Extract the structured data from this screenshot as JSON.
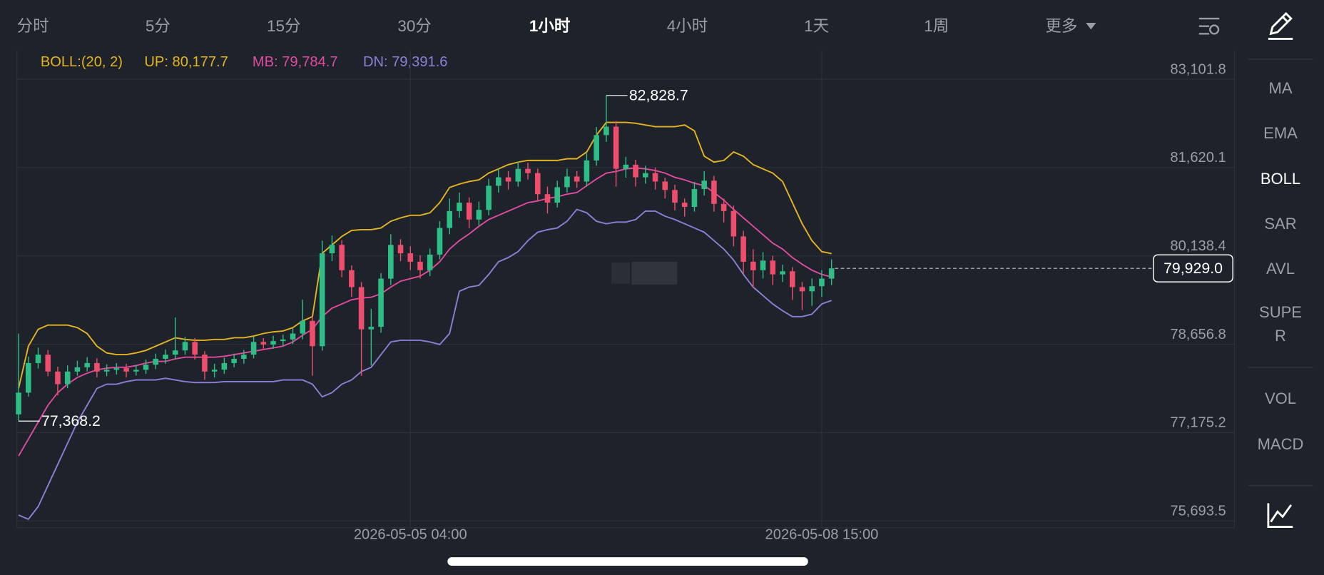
{
  "tabs": [
    "分时",
    "5分",
    "15分",
    "30分",
    "1小时",
    "4小时",
    "1天",
    "1周",
    "更多"
  ],
  "sidebar": {
    "indicators": [
      "MA",
      "EMA",
      "BOLL",
      "SAR",
      "AVL",
      "SUPER"
    ],
    "sub_indicators": [
      "VOL",
      "MACD"
    ]
  },
  "chart_data": {
    "type": "candlestick",
    "indicator": "BOLL:(20, 2)",
    "categories": [
      null,
      null,
      null,
      null,
      null,
      null,
      null,
      null,
      null,
      null,
      null,
      null,
      null,
      null,
      null,
      null,
      null,
      null,
      null,
      null,
      null,
      null,
      null,
      null,
      null,
      null,
      null,
      null,
      null,
      null,
      null,
      null,
      null,
      null,
      null,
      null,
      null,
      null,
      null,
      null,
      "2026-05-05 04:00",
      null,
      null,
      null,
      null,
      null,
      null,
      null,
      null,
      null,
      null,
      null,
      null,
      null,
      null,
      null,
      null,
      null,
      null,
      null,
      null,
      null,
      null,
      null,
      null,
      null,
      null,
      null,
      null,
      null,
      null,
      null,
      null,
      null,
      null,
      null,
      null,
      null,
      null,
      null,
      null,
      null,
      "2026-05-08 15:00",
      null
    ],
    "open": [
      77480,
      77845,
      78341,
      78482,
      78199,
      77987,
      78199,
      78270,
      78341,
      78199,
      78228,
      78256,
      78199,
      78228,
      78313,
      78412,
      78482,
      78553,
      78695,
      78482,
      78199,
      78230,
      78341,
      78412,
      78482,
      78695,
      78652,
      78710,
      78737,
      78836,
      79049,
      78624,
      80182,
      80323,
      79898,
      79615,
      78907,
      78950,
      79757,
      80323,
      80182,
      80040,
      79898,
      80160,
      80606,
      80890,
      81031,
      80748,
      80910,
      81314,
      81456,
      81385,
      81598,
      81527,
      81173,
      81031,
      81290,
      81470,
      81385,
      81739,
      82164,
      82306,
      81598,
      81668,
      81456,
      81527,
      81385,
      81244,
      81031,
      80960,
      81260,
      81400,
      81010,
      80890,
      80465,
      80040,
      79898,
      80060,
      79828,
      79880,
      79615,
      79544,
      79630,
      79757
    ],
    "high": [
      78836,
      78450,
      78600,
      78560,
      78280,
      78300,
      78380,
      78440,
      78420,
      78320,
      78340,
      78330,
      78310,
      78400,
      78500,
      78570,
      79106,
      78780,
      78760,
      78540,
      78330,
      78430,
      78500,
      78560,
      78790,
      78760,
      78800,
      78820,
      78930,
      79403,
      79120,
      80394,
      80480,
      80400,
      79980,
      79700,
      79250,
      79850,
      80500,
      80420,
      80300,
      80150,
      80260,
      80720,
      81100,
      81200,
      81120,
      81050,
      81430,
      81600,
      81560,
      81720,
      81700,
      81600,
      81300,
      81400,
      81600,
      81560,
      81860,
      82300,
      82828.7,
      82400,
      81800,
      81750,
      81650,
      81620,
      81450,
      81330,
      81100,
      81380,
      81560,
      81480,
      81100,
      80980,
      80560,
      80250,
      80200,
      80140,
      79990,
      79950,
      79700,
      79760,
      79900,
      80080
    ],
    "low": [
      77368.2,
      77780,
      78250,
      78120,
      77800,
      77920,
      78130,
      78200,
      78100,
      78120,
      78150,
      78100,
      78130,
      78160,
      78240,
      78330,
      78400,
      78480,
      78400,
      78060,
      78100,
      78160,
      78270,
      78330,
      78420,
      78570,
      78580,
      78630,
      78660,
      78740,
      78128,
      78550,
      80050,
      79780,
      79450,
      78128,
      78300,
      78850,
      79650,
      80050,
      79900,
      79760,
      79800,
      80080,
      80500,
      80780,
      80600,
      80650,
      80820,
      81200,
      81250,
      81300,
      81420,
      81050,
      80850,
      80950,
      81200,
      81280,
      81300,
      81650,
      82050,
      81300,
      81450,
      81300,
      81350,
      81250,
      81100,
      80900,
      80800,
      80880,
      81150,
      80880,
      80700,
      80300,
      79830,
      79600,
      79760,
      79650,
      79700,
      79400,
      79230,
      79300,
      79450,
      79650
    ],
    "close": [
      77845,
      78341,
      78482,
      78199,
      77987,
      78199,
      78270,
      78341,
      78199,
      78228,
      78256,
      78199,
      78228,
      78313,
      78412,
      78482,
      78553,
      78695,
      78482,
      78199,
      78230,
      78341,
      78412,
      78482,
      78695,
      78652,
      78710,
      78737,
      78836,
      79049,
      78624,
      80182,
      80323,
      79898,
      79615,
      78907,
      78950,
      79757,
      80323,
      80182,
      80040,
      79898,
      80160,
      80606,
      80890,
      81031,
      80748,
      80910,
      81314,
      81456,
      81385,
      81598,
      81527,
      81173,
      81031,
      81290,
      81470,
      81385,
      81739,
      82164,
      82306,
      81598,
      81668,
      81456,
      81527,
      81385,
      81244,
      81031,
      80960,
      81260,
      81400,
      81010,
      80890,
      80465,
      80040,
      79898,
      80060,
      79828,
      79880,
      79615,
      79544,
      79630,
      79757,
      79929
    ],
    "up_color": "#2ebd85",
    "down_color": "#ee4e6c",
    "series": [
      {
        "name": "UP: 80,177.7",
        "color": "#e6b422",
        "values": [
          77916,
          78624,
          78907,
          78978,
          78978,
          78978,
          78936,
          78836,
          78624,
          78511,
          78482,
          78482,
          78511,
          78553,
          78624,
          78695,
          78766,
          78737,
          78723,
          78723,
          78737,
          78737,
          78766,
          78766,
          78794,
          78836,
          78865,
          78879,
          78936,
          79049,
          79120,
          80182,
          80323,
          80465,
          80564,
          80578,
          80578,
          80606,
          80720,
          80776,
          80819,
          80819,
          80861,
          81031,
          81286,
          81343,
          81385,
          81414,
          81527,
          81598,
          81668,
          81711,
          81739,
          81739,
          81739,
          81739,
          81768,
          81768,
          81881,
          82164,
          82376,
          82376,
          82376,
          82362,
          82334,
          82306,
          82306,
          82306,
          82334,
          82235,
          81810,
          81711,
          81739,
          81881,
          81810,
          81668,
          81598,
          81527,
          81385,
          81031,
          80677,
          80394,
          80210,
          80177.7
        ]
      },
      {
        "name": "MB: 79,784.7",
        "color": "#e04aa0",
        "values": [
          76783,
          77066,
          77350,
          77633,
          77845,
          77987,
          78100,
          78171,
          78228,
          78256,
          78270,
          78270,
          78298,
          78341,
          78369,
          78369,
          78412,
          78440,
          78440,
          78440,
          78440,
          78454,
          78482,
          78511,
          78539,
          78567,
          78596,
          78624,
          78695,
          78808,
          78907,
          79120,
          79261,
          79332,
          79403,
          79431,
          79445,
          79502,
          79615,
          79714,
          79757,
          79799,
          79898,
          80040,
          80252,
          80394,
          80507,
          80635,
          80748,
          80819,
          80890,
          80960,
          81031,
          81060,
          81102,
          81130,
          81173,
          81201,
          81314,
          81428,
          81527,
          81555,
          81598,
          81612,
          81598,
          81569,
          81527,
          81456,
          81414,
          81357,
          81314,
          81201,
          81074,
          80918,
          80776,
          80635,
          80493,
          80352,
          80252,
          80111,
          79998,
          79898,
          79828,
          79784.7
        ]
      },
      {
        "name": "DN: 79,391.6",
        "color": "#8d7fd8",
        "values": [
          75792,
          75721,
          75934,
          76288,
          76642,
          76996,
          77350,
          77633,
          77916,
          77987,
          77987,
          78029,
          78058,
          78058,
          78058,
          78086,
          78058,
          78029,
          78015,
          78015,
          78015,
          78029,
          78029,
          78029,
          78029,
          78029,
          78029,
          78058,
          78058,
          78058,
          77987,
          77774,
          77845,
          77987,
          78058,
          78199,
          78270,
          78482,
          78695,
          78723,
          78723,
          78723,
          78695,
          78652,
          78836,
          79544,
          79615,
          79644,
          79828,
          80040,
          80111,
          80210,
          80394,
          80536,
          80578,
          80606,
          80720,
          80918,
          80861,
          80720,
          80677,
          80706,
          80706,
          80748,
          80890,
          80890,
          80805,
          80748,
          80677,
          80606,
          80536,
          80394,
          80252,
          80068,
          79828,
          79615,
          79474,
          79332,
          79219,
          79120,
          79120,
          79162,
          79332,
          79391.6
        ]
      }
    ],
    "ylim": [
      75580,
      83580
    ],
    "yticks": [
      {
        "value": 75693.5,
        "label": "75,693.5"
      },
      {
        "value": 77175.2,
        "label": "77,175.2"
      },
      {
        "value": 78656.8,
        "label": "78,656.8"
      },
      {
        "value": 80138.4,
        "label": "80,138.4"
      },
      {
        "value": 81620.1,
        "label": "81,620.1"
      },
      {
        "value": 83101.8,
        "label": "83,101.8"
      }
    ],
    "grid": true,
    "annotations": [
      {
        "value": 82828.7,
        "label": "82,828.7"
      },
      {
        "value": 77368.2,
        "label": "77,368.2"
      }
    ],
    "last_price": {
      "value": 79929,
      "label": "79,929.0"
    }
  }
}
